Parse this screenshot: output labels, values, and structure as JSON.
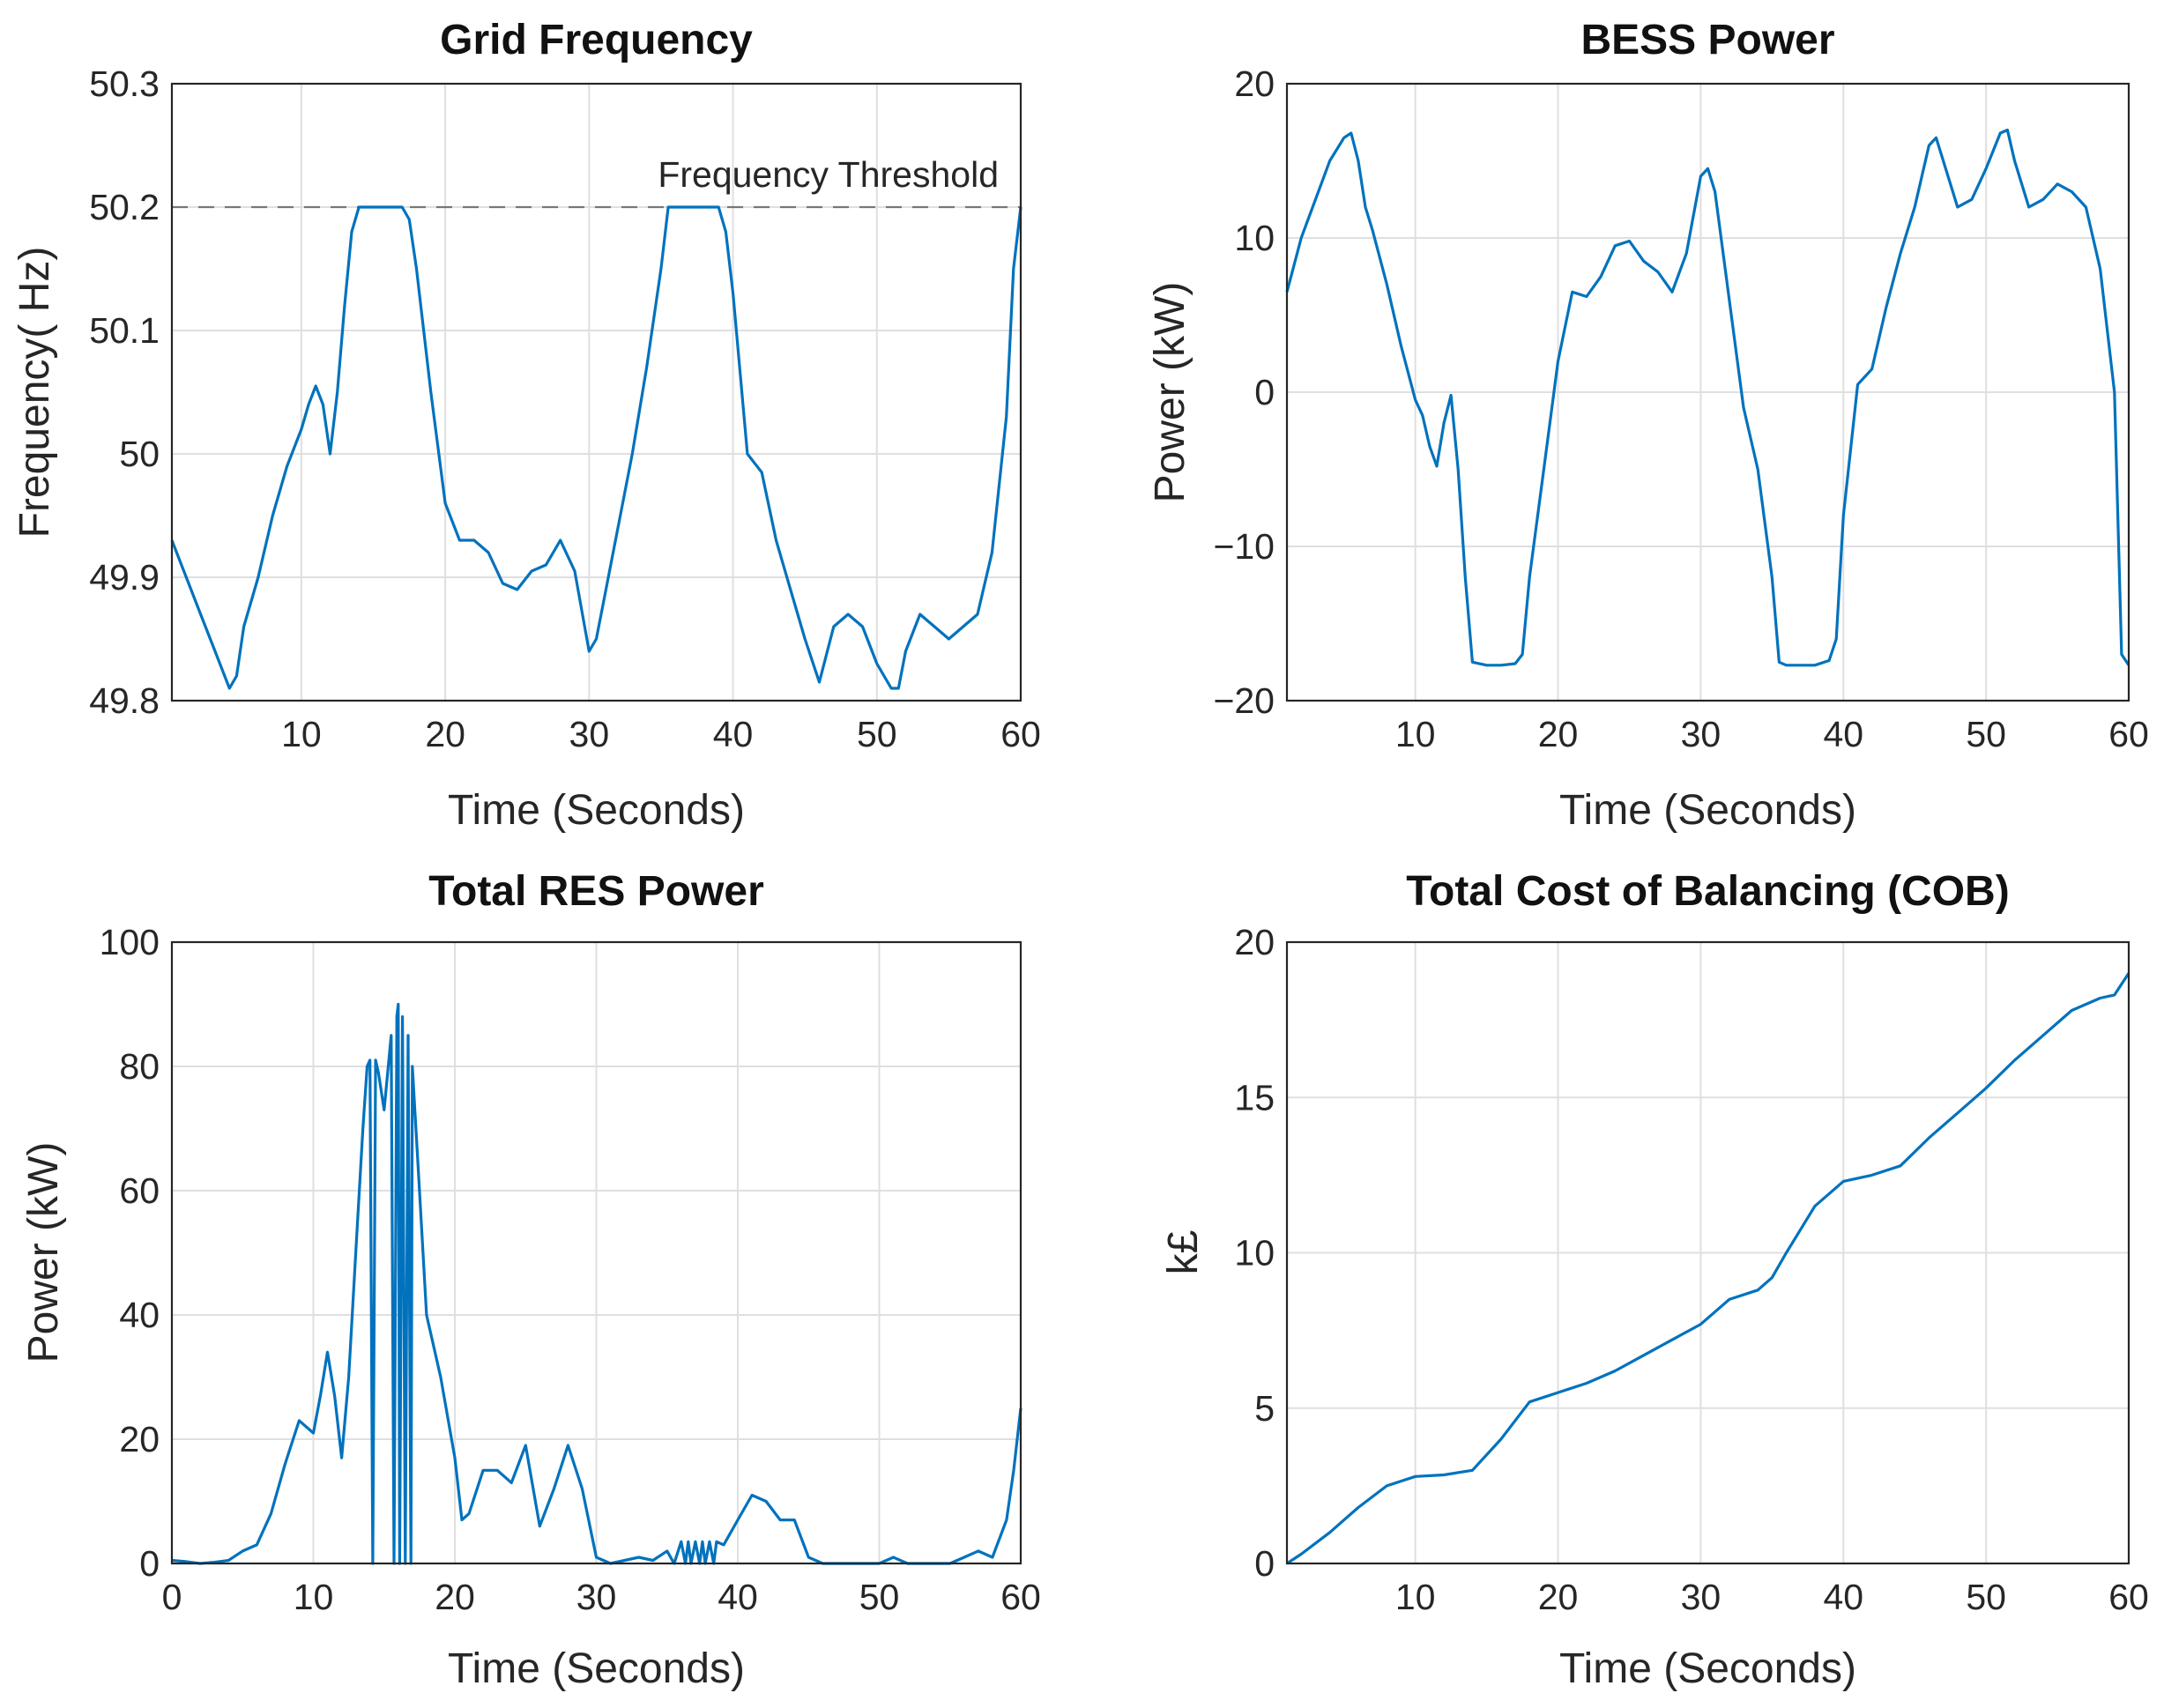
{
  "chart_data": [
    {
      "id": "freq",
      "type": "line",
      "title": "Grid Frequency",
      "xlabel": "Time (Seconds)",
      "ylabel": "Frequency( Hz)",
      "xlim": [
        1,
        60
      ],
      "ylim": [
        49.8,
        50.3
      ],
      "xticks": [
        10,
        20,
        30,
        40,
        50,
        60
      ],
      "yticks": [
        49.8,
        49.9,
        50,
        50.1,
        50.2,
        50.3
      ],
      "ytick_labels": [
        "49.8",
        "49.9",
        "50",
        "50.1",
        "50.2",
        "50.3"
      ],
      "grid": true,
      "threshold": {
        "value": 50.2,
        "label": "Frequency Threshold"
      },
      "series": [
        {
          "name": "Frequency",
          "color": "#0072bd",
          "x": [
            1,
            2,
            3,
            4,
            5,
            5.5,
            6,
            7,
            8,
            9,
            10,
            10.5,
            11,
            11.5,
            12,
            12.5,
            13,
            13.5,
            14,
            15,
            16,
            17,
            17.5,
            18,
            19,
            20,
            21,
            22,
            23,
            24,
            25,
            26,
            27,
            28,
            29,
            30,
            30.5,
            31,
            32,
            33,
            34,
            35,
            35.5,
            36,
            37,
            38,
            39,
            39.5,
            40,
            41,
            42,
            43,
            44,
            45,
            46,
            47,
            48,
            49,
            50,
            51,
            51.5,
            52,
            53,
            54,
            55,
            56,
            57,
            58,
            59,
            59.5,
            60
          ],
          "y": [
            49.93,
            49.9,
            49.87,
            49.84,
            49.81,
            49.82,
            49.86,
            49.9,
            49.95,
            49.99,
            50.02,
            50.04,
            50.055,
            50.04,
            50.0,
            50.05,
            50.12,
            50.18,
            50.2,
            50.2,
            50.2,
            50.2,
            50.19,
            50.15,
            50.05,
            49.96,
            49.93,
            49.93,
            49.92,
            49.895,
            49.89,
            49.905,
            49.91,
            49.93,
            49.905,
            49.84,
            49.85,
            49.88,
            49.94,
            50.0,
            50.07,
            50.15,
            50.2,
            50.2,
            50.2,
            50.2,
            50.2,
            50.18,
            50.13,
            50.0,
            49.985,
            49.93,
            49.89,
            49.85,
            49.815,
            49.86,
            49.87,
            49.86,
            49.83,
            49.81,
            49.81,
            49.84,
            49.87,
            49.86,
            49.85,
            49.86,
            49.87,
            49.92,
            50.03,
            50.15,
            50.2
          ]
        }
      ]
    },
    {
      "id": "bess",
      "type": "line",
      "title": "BESS Power",
      "xlabel": "Time (Seconds)",
      "ylabel": "Power (kW)",
      "xlim": [
        1,
        60
      ],
      "ylim": [
        -20,
        20
      ],
      "xticks": [
        10,
        20,
        30,
        40,
        50,
        60
      ],
      "yticks": [
        -20,
        -10,
        0,
        10,
        20
      ],
      "ytick_labels": [
        "−20",
        "−10",
        "0",
        "10",
        "20"
      ],
      "grid": true,
      "series": [
        {
          "name": "BESS Power",
          "color": "#0072bd",
          "x": [
            1,
            2,
            3,
            4,
            5,
            5.5,
            6,
            6.5,
            7,
            8,
            9,
            10,
            10.5,
            11,
            11.5,
            12,
            12.5,
            13,
            13.5,
            14,
            15,
            16,
            17,
            17.5,
            18,
            19,
            20,
            21,
            22,
            23,
            24,
            25,
            26,
            27,
            28,
            29,
            30,
            30.5,
            31,
            32,
            33,
            34,
            35,
            35.5,
            36,
            37,
            38,
            39,
            39.5,
            40,
            41,
            42,
            43,
            44,
            45,
            46,
            46.5,
            47,
            48,
            49,
            50,
            51,
            51.5,
            52,
            53,
            54,
            55,
            56,
            57,
            58,
            59,
            59.5,
            60
          ],
          "y": [
            6.5,
            10,
            12.5,
            15,
            16.5,
            16.8,
            15,
            12,
            10.5,
            7,
            3,
            -0.5,
            -1.5,
            -3.5,
            -4.8,
            -2,
            -0.2,
            -5,
            -12,
            -17.5,
            -17.7,
            -17.7,
            -17.6,
            -17,
            -12,
            -5,
            2,
            6.5,
            6.2,
            7.5,
            9.5,
            9.8,
            8.5,
            7.8,
            6.5,
            9,
            14,
            14.5,
            13,
            6,
            -1,
            -5,
            -12,
            -17.5,
            -17.7,
            -17.7,
            -17.7,
            -17.4,
            -16,
            -8,
            0.5,
            1.5,
            5.5,
            9,
            12,
            16,
            16.5,
            15,
            12,
            12.5,
            14.5,
            16.8,
            17,
            15,
            12,
            12.5,
            13.5,
            13,
            12,
            8,
            0,
            -17,
            -17.7
          ]
        }
      ]
    },
    {
      "id": "res",
      "type": "line",
      "title": "Total RES Power",
      "xlabel": "Time (Seconds)",
      "ylabel": "Power (kW)",
      "xlim": [
        0,
        60
      ],
      "ylim": [
        0,
        100
      ],
      "xticks": [
        0,
        10,
        20,
        30,
        40,
        50,
        60
      ],
      "yticks": [
        0,
        20,
        40,
        60,
        80,
        100
      ],
      "ytick_labels": [
        "0",
        "20",
        "40",
        "60",
        "80",
        "100"
      ],
      "grid": true,
      "series": [
        {
          "name": "Total RES Power",
          "color": "#0072bd",
          "x": [
            0,
            1,
            2,
            3,
            4,
            5,
            6,
            7,
            8,
            9,
            10,
            10.5,
            11,
            11.5,
            12,
            12.5,
            13,
            13.5,
            13.8,
            14,
            14.2,
            14.4,
            14.6,
            15,
            15.5,
            15.7,
            15.9,
            16,
            16.1,
            16.3,
            16.5,
            16.7,
            16.9,
            17,
            17.5,
            18,
            19,
            20,
            20.5,
            21,
            22,
            23,
            24,
            25,
            26,
            27,
            28,
            29,
            30,
            31,
            32,
            33,
            34,
            35,
            35.5,
            36,
            36.3,
            36.5,
            36.7,
            37,
            37.3,
            37.5,
            37.7,
            38,
            38.3,
            38.5,
            39,
            40,
            41,
            42,
            43,
            44,
            45,
            46,
            47,
            48,
            49,
            50,
            51,
            52,
            53,
            54,
            55,
            56,
            57,
            58,
            59,
            59.5,
            60
          ],
          "y": [
            0.5,
            0.3,
            0,
            0.2,
            0.5,
            2,
            3,
            8,
            16,
            23,
            21,
            27,
            34,
            27,
            17,
            30,
            50,
            70,
            80,
            81,
            0,
            81,
            79,
            73,
            85,
            0,
            88,
            90,
            0,
            88,
            0,
            85,
            0,
            80,
            60,
            40,
            30,
            17,
            7,
            8,
            15,
            15,
            13,
            19,
            6,
            12,
            19,
            12,
            1,
            0,
            0.5,
            1,
            0.5,
            2,
            0,
            3.5,
            0,
            3.5,
            0,
            3.5,
            0,
            3.5,
            0,
            3.5,
            0,
            3.5,
            3,
            7,
            11,
            10,
            7,
            7,
            1,
            0,
            0,
            0,
            0,
            0,
            1,
            0,
            0,
            0,
            0,
            1,
            2,
            1,
            7,
            15,
            25
          ]
        }
      ]
    },
    {
      "id": "cob",
      "type": "line",
      "title": "Total Cost of Balancing (COB)",
      "xlabel": "Time (Seconds)",
      "ylabel": "k£",
      "xlim": [
        1,
        60
      ],
      "ylim": [
        0,
        20
      ],
      "xticks": [
        10,
        20,
        30,
        40,
        50,
        60
      ],
      "yticks": [
        0,
        5,
        10,
        15,
        20
      ],
      "ytick_labels": [
        "0",
        "5",
        "10",
        "15",
        "20"
      ],
      "grid": true,
      "series": [
        {
          "name": "Total COB",
          "color": "#0072bd",
          "x": [
            1,
            2,
            4,
            6,
            8,
            10,
            12,
            14,
            16,
            18,
            20,
            22,
            24,
            26,
            28,
            30,
            32,
            34,
            35,
            36,
            38,
            40,
            42,
            44,
            46,
            48,
            50,
            52,
            54,
            56,
            58,
            59,
            60
          ],
          "y": [
            0,
            0.3,
            1,
            1.8,
            2.5,
            2.8,
            2.85,
            3,
            4,
            5.2,
            5.5,
            5.8,
            6.2,
            6.7,
            7.2,
            7.7,
            8.5,
            8.8,
            9.2,
            10,
            11.5,
            12.3,
            12.5,
            12.8,
            13.7,
            14.5,
            15.3,
            16.2,
            17,
            17.8,
            18.2,
            18.3,
            19
          ]
        }
      ]
    }
  ]
}
